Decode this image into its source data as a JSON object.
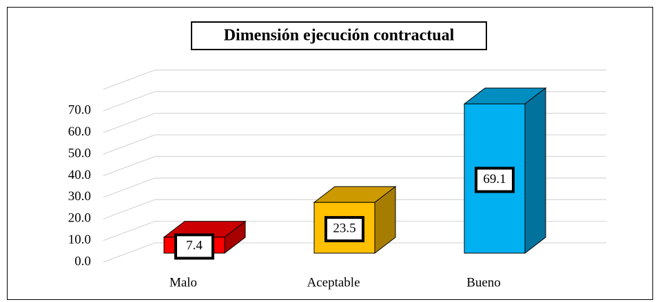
{
  "chart_data": {
    "type": "bar3d",
    "title": "Dimensión ejecución contractual",
    "categories": [
      "Malo",
      "Aceptable",
      "Bueno"
    ],
    "values": [
      7.4,
      23.5,
      69.1
    ],
    "colors": [
      "#ff0000",
      "#ffc000",
      "#00b0f0"
    ],
    "ylim": [
      0,
      80
    ],
    "yticks": [
      {
        "value": 0,
        "label": "0.0"
      },
      {
        "value": 10,
        "label": "10.0"
      },
      {
        "value": 20,
        "label": "20.0"
      },
      {
        "value": 30,
        "label": "30.0"
      },
      {
        "value": 40,
        "label": "40.0"
      },
      {
        "value": 50,
        "label": "50.0"
      },
      {
        "value": 60,
        "label": "60.0"
      },
      {
        "value": 70,
        "label": "70.0"
      }
    ],
    "grid": true
  }
}
